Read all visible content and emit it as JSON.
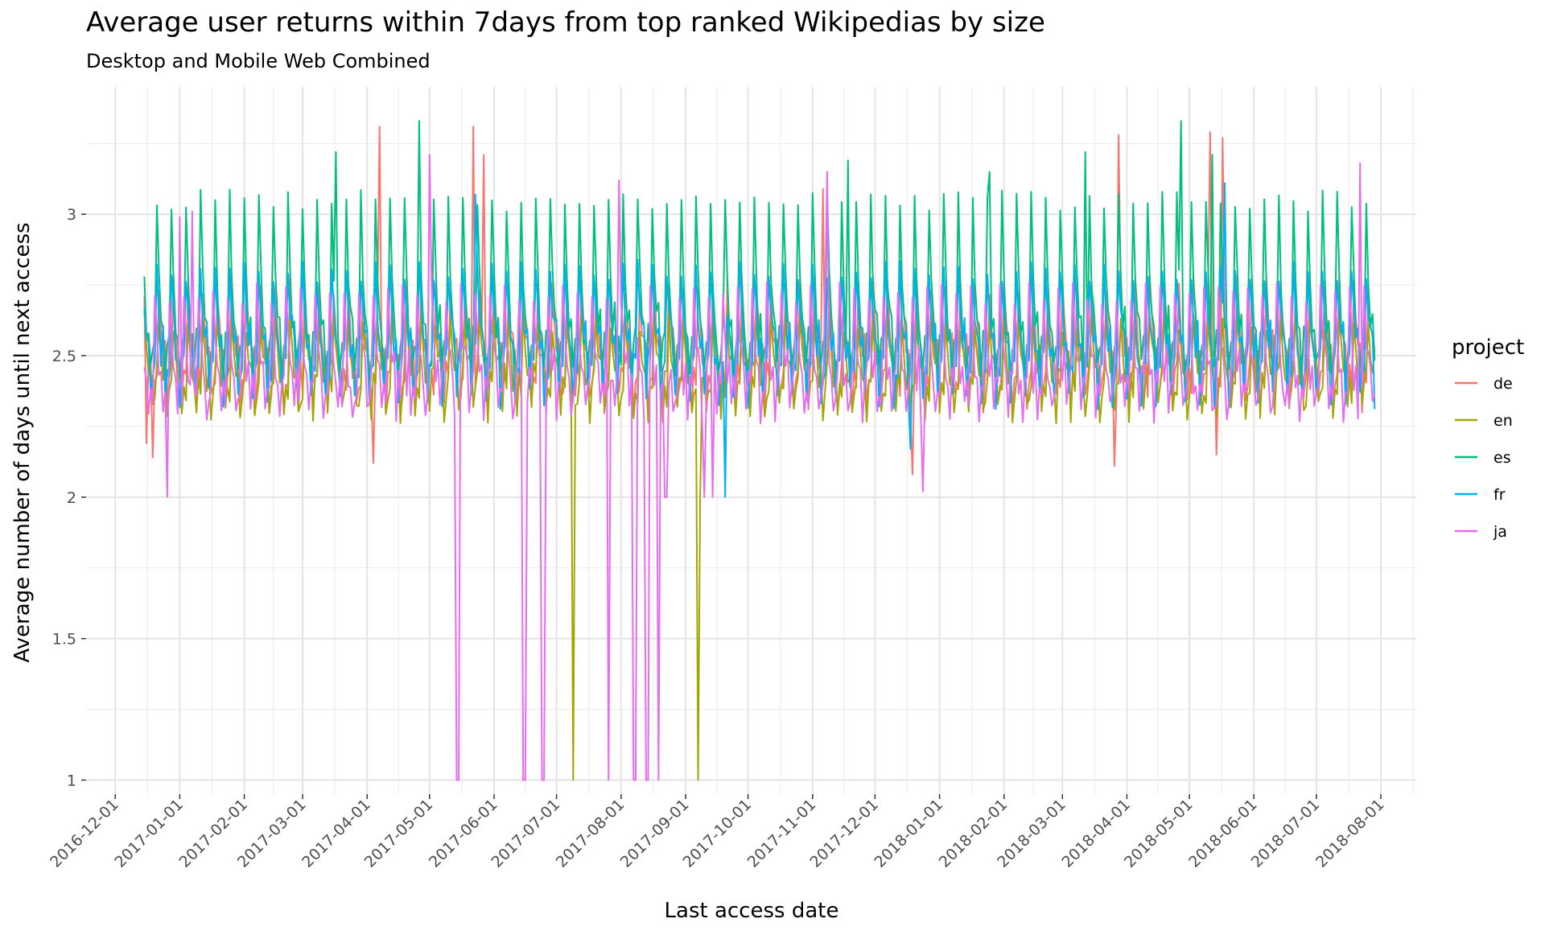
{
  "chart_data": {
    "type": "line",
    "title": "Average user returns within 7days from top ranked Wikipedias by size",
    "subtitle": "Desktop and Mobile Web Combined",
    "xlabel": "Last access date",
    "ylabel": "Average number of days until next access",
    "xlim": [
      "2016-11-17",
      "2018-08-18"
    ],
    "ylim": [
      0.95,
      3.45
    ],
    "y_ticks": [
      1,
      1.5,
      2,
      2.5,
      3
    ],
    "y_tick_labels": [
      "1",
      "1.5",
      "2",
      "2.5",
      "3"
    ],
    "x_ticks": [
      "2016-12-01",
      "2017-01-01",
      "2017-02-01",
      "2017-03-01",
      "2017-04-01",
      "2017-05-01",
      "2017-06-01",
      "2017-07-01",
      "2017-08-01",
      "2017-09-01",
      "2017-10-01",
      "2017-11-01",
      "2017-12-01",
      "2018-01-01",
      "2018-02-01",
      "2018-03-01",
      "2018-04-01",
      "2018-05-01",
      "2018-06-01",
      "2018-07-01",
      "2018-08-01"
    ],
    "x_tick_labels": [
      "2016-12-01",
      "2017-01-01",
      "2017-02-01",
      "2017-03-01",
      "2017-04-01",
      "2017-05-01",
      "2017-06-01",
      "2017-07-01",
      "2017-08-01",
      "2017-09-01",
      "2017-10-01",
      "2017-11-01",
      "2017-12-01",
      "2018-01-01",
      "2018-02-01",
      "2018-03-01",
      "2018-04-01",
      "2018-05-01",
      "2018-06-01",
      "2018-07-01",
      "2018-08-01"
    ],
    "grid": true,
    "legend": {
      "title": "project",
      "position": "right"
    },
    "series": [
      {
        "name": "de",
        "color": "#F8766D",
        "x_start": "2016-12-15",
        "x_end": "2018-07-29",
        "base": 2.5,
        "weekly_high": 2.75,
        "weekly_low": 2.33,
        "spikes": [
          [
            "2017-04-07",
            3.31
          ],
          [
            "2017-05-22",
            3.31
          ],
          [
            "2017-05-27",
            3.21
          ],
          [
            "2018-03-28",
            3.28
          ],
          [
            "2018-05-11",
            3.29
          ],
          [
            "2018-05-17",
            3.27
          ],
          [
            "2017-11-06",
            3.09
          ]
        ],
        "dips": [
          [
            "2016-12-16",
            2.19
          ],
          [
            "2016-12-19",
            2.14
          ],
          [
            "2017-04-04",
            2.12
          ],
          [
            "2017-12-19",
            2.08
          ],
          [
            "2018-03-26",
            2.11
          ],
          [
            "2018-05-14",
            2.15
          ]
        ]
      },
      {
        "name": "en",
        "color": "#A3A500",
        "x_start": "2016-12-15",
        "x_end": "2018-07-29",
        "base": 2.45,
        "weekly_high": 2.62,
        "weekly_low": 2.3,
        "spikes": [],
        "dips": [
          [
            "2017-07-09",
            1.0
          ],
          [
            "2017-09-07",
            1.0
          ],
          [
            "2017-09-08",
            2.0
          ]
        ]
      },
      {
        "name": "es",
        "color": "#00BF7D",
        "x_start": "2016-12-15",
        "x_end": "2018-07-29",
        "base": 2.6,
        "weekly_high": 3.05,
        "weekly_low": 2.45,
        "spikes": [
          [
            "2017-03-17",
            3.22
          ],
          [
            "2017-04-26",
            3.33
          ],
          [
            "2017-11-18",
            3.19
          ],
          [
            "2018-03-12",
            3.22
          ],
          [
            "2018-04-27",
            3.33
          ],
          [
            "2018-05-12",
            3.21
          ],
          [
            "2018-01-25",
            3.15
          ]
        ],
        "dips": []
      },
      {
        "name": "fr",
        "color": "#00B0F6",
        "x_start": "2016-12-15",
        "x_end": "2018-07-29",
        "base": 2.55,
        "weekly_high": 2.8,
        "weekly_low": 2.35,
        "spikes": [
          [
            "2017-05-23",
            3.07
          ],
          [
            "2018-05-18",
            3.11
          ]
        ],
        "dips": [
          [
            "2017-09-20",
            2.0
          ],
          [
            "2017-12-18",
            2.17
          ]
        ]
      },
      {
        "name": "ja",
        "color": "#E76BF3",
        "x_start": "2016-12-15",
        "x_end": "2018-07-29",
        "base": 2.45,
        "weekly_high": 2.72,
        "weekly_low": 2.3,
        "spikes": [
          [
            "2017-01-01",
            2.99
          ],
          [
            "2017-01-07",
            3.01
          ],
          [
            "2017-05-01",
            3.21
          ],
          [
            "2017-07-31",
            3.12
          ],
          [
            "2017-11-08",
            3.15
          ],
          [
            "2018-07-22",
            3.18
          ]
        ],
        "dips": [
          [
            "2016-12-26",
            2.0
          ],
          [
            "2017-05-14",
            1.0
          ],
          [
            "2017-05-15",
            1.0
          ],
          [
            "2017-06-15",
            1.0
          ],
          [
            "2017-06-16",
            1.0
          ],
          [
            "2017-06-24",
            1.0
          ],
          [
            "2017-06-25",
            1.0
          ],
          [
            "2017-07-26",
            1.0
          ],
          [
            "2017-08-07",
            1.0
          ],
          [
            "2017-08-08",
            1.0
          ],
          [
            "2017-08-13",
            1.0
          ],
          [
            "2017-08-14",
            1.0
          ],
          [
            "2017-08-19",
            1.0
          ],
          [
            "2017-08-22",
            2.0
          ],
          [
            "2017-08-23",
            2.0
          ],
          [
            "2017-09-10",
            2.0
          ],
          [
            "2017-09-14",
            2.0
          ],
          [
            "2017-12-24",
            2.02
          ]
        ]
      }
    ]
  }
}
